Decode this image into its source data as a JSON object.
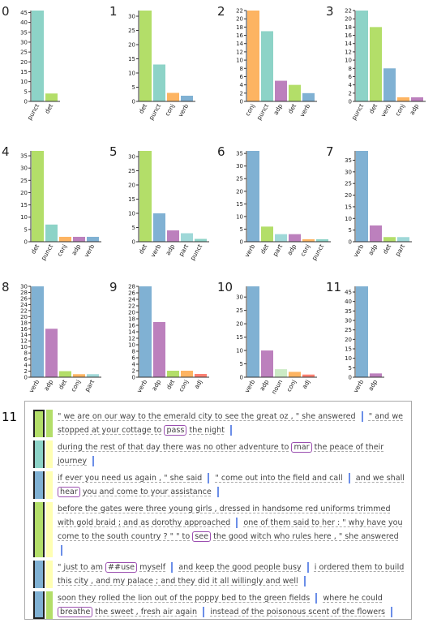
{
  "chart_data": [
    {
      "type": "bar",
      "title": "0",
      "categories": [
        "punct",
        "det"
      ],
      "values": [
        46,
        4
      ],
      "colors": [
        "#8dd3c7",
        "#b3de69"
      ],
      "ylim": [
        0,
        46
      ],
      "yticks": [
        0,
        5,
        10,
        15,
        20,
        25,
        30,
        35,
        40,
        45
      ]
    },
    {
      "type": "bar",
      "title": "1",
      "categories": [
        "det",
        "punct",
        "conj",
        "verb"
      ],
      "values": [
        32,
        13,
        3,
        2
      ],
      "colors": [
        "#b3de69",
        "#8dd3c7",
        "#fdb462",
        "#80b1d3"
      ],
      "ylim": [
        0,
        32
      ],
      "yticks": [
        0,
        5,
        10,
        15,
        20,
        25,
        30
      ]
    },
    {
      "type": "bar",
      "title": "2",
      "categories": [
        "conj",
        "punct",
        "adp",
        "det",
        "verb"
      ],
      "values": [
        22,
        17,
        5,
        4,
        2
      ],
      "colors": [
        "#fdb462",
        "#8dd3c7",
        "#bc80bd",
        "#b3de69",
        "#80b1d3"
      ],
      "ylim": [
        0,
        22
      ],
      "yticks": [
        0,
        2,
        4,
        6,
        8,
        10,
        12,
        14,
        16,
        18,
        20,
        22
      ]
    },
    {
      "type": "bar",
      "title": "3",
      "categories": [
        "punct",
        "det",
        "verb",
        "conj",
        "adp"
      ],
      "values": [
        22,
        18,
        8,
        1,
        1
      ],
      "colors": [
        "#8dd3c7",
        "#b3de69",
        "#80b1d3",
        "#fdb462",
        "#bc80bd"
      ],
      "ylim": [
        0,
        22
      ],
      "yticks": [
        0,
        2,
        4,
        6,
        8,
        10,
        12,
        14,
        16,
        18,
        20,
        22
      ]
    },
    {
      "type": "bar",
      "title": "4",
      "categories": [
        "det",
        "punct",
        "conj",
        "adp",
        "verb"
      ],
      "values": [
        37,
        7,
        2,
        2,
        2
      ],
      "colors": [
        "#b3de69",
        "#8dd3c7",
        "#fdb462",
        "#bc80bd",
        "#80b1d3"
      ],
      "ylim": [
        0,
        37
      ],
      "yticks": [
        0,
        5,
        10,
        15,
        20,
        25,
        30,
        35
      ]
    },
    {
      "type": "bar",
      "title": "5",
      "categories": [
        "det",
        "verb",
        "adp",
        "part",
        "punct"
      ],
      "values": [
        32,
        10,
        4,
        3,
        1
      ],
      "colors": [
        "#b3de69",
        "#80b1d3",
        "#bc80bd",
        "#9fd8d8",
        "#8dd3c7"
      ],
      "ylim": [
        0,
        32
      ],
      "yticks": [
        0,
        5,
        10,
        15,
        20,
        25,
        30
      ]
    },
    {
      "type": "bar",
      "title": "6",
      "categories": [
        "verb",
        "det",
        "part",
        "adp",
        "conj",
        "punct"
      ],
      "values": [
        36,
        6,
        3,
        3,
        1,
        1
      ],
      "colors": [
        "#80b1d3",
        "#b3de69",
        "#9fd8d8",
        "#bc80bd",
        "#fdb462",
        "#8dd3c7"
      ],
      "ylim": [
        0,
        36
      ],
      "yticks": [
        0,
        5,
        10,
        15,
        20,
        25,
        30,
        35
      ]
    },
    {
      "type": "bar",
      "title": "7",
      "categories": [
        "verb",
        "adp",
        "det",
        "part"
      ],
      "values": [
        39,
        7,
        2,
        2
      ],
      "colors": [
        "#80b1d3",
        "#bc80bd",
        "#b3de69",
        "#9fd8d8"
      ],
      "ylim": [
        0,
        39
      ],
      "yticks": [
        0,
        5,
        10,
        15,
        20,
        25,
        30,
        35
      ]
    },
    {
      "type": "bar",
      "title": "8",
      "categories": [
        "verb",
        "adp",
        "det",
        "conj",
        "part"
      ],
      "values": [
        30,
        16,
        2,
        1,
        1
      ],
      "colors": [
        "#80b1d3",
        "#bc80bd",
        "#b3de69",
        "#fdb462",
        "#9fd8d8"
      ],
      "ylim": [
        0,
        30
      ],
      "yticks": [
        0,
        2,
        4,
        6,
        8,
        10,
        12,
        14,
        16,
        18,
        20,
        22,
        24,
        26,
        28,
        30
      ]
    },
    {
      "type": "bar",
      "title": "9",
      "categories": [
        "verb",
        "adp",
        "det",
        "conj",
        "adj"
      ],
      "values": [
        28,
        17,
        2,
        2,
        1
      ],
      "colors": [
        "#80b1d3",
        "#bc80bd",
        "#b3de69",
        "#fdb462",
        "#fb8072"
      ],
      "ylim": [
        0,
        28
      ],
      "yticks": [
        0,
        2,
        4,
        6,
        8,
        10,
        12,
        14,
        16,
        18,
        20,
        22,
        24,
        26,
        28
      ]
    },
    {
      "type": "bar",
      "title": "10",
      "categories": [
        "verb",
        "adp",
        "noun",
        "conj",
        "adj"
      ],
      "values": [
        34,
        10,
        3,
        2,
        1
      ],
      "colors": [
        "#80b1d3",
        "#bc80bd",
        "#ccebc5",
        "#fdb462",
        "#fb8072"
      ],
      "ylim": [
        0,
        34
      ],
      "yticks": [
        0,
        5,
        10,
        15,
        20,
        25,
        30
      ]
    },
    {
      "type": "bar",
      "title": "11",
      "categories": [
        "verb",
        "adp"
      ],
      "values": [
        48,
        2
      ],
      "colors": [
        "#80b1d3",
        "#bc80bd"
      ],
      "ylim": [
        0,
        48
      ],
      "yticks": [
        0,
        5,
        10,
        15,
        20,
        25,
        30,
        35,
        40,
        45
      ]
    }
  ],
  "text_panel": {
    "label": "11",
    "rows": [
      {
        "colors": [
          "#b3de69",
          "#b3de69"
        ],
        "clauses": [
          [
            "\" we are on our way to the emerald city to see the great oz , \" she answered"
          ],
          [
            "\" and we stopped at your cottage to",
            {
              "target": "pass"
            },
            "the night"
          ]
        ]
      },
      {
        "colors": [
          "#8dd3c7",
          "#ffffb3"
        ],
        "clauses": [
          [
            "during the rest of that day there was no other adventure to",
            {
              "target": "mar"
            },
            "the peace of their journey"
          ]
        ]
      },
      {
        "colors": [
          "#80b1d3",
          "#ffffb3"
        ],
        "clauses": [
          [
            "if ever you need us again , \" she said"
          ],
          [
            "\" come out into the field and call"
          ],
          [
            "and we shall",
            {
              "target": "hear"
            },
            "you and come to your assistance"
          ]
        ]
      },
      {
        "colors": [
          "#b3de69",
          "#ffffb3"
        ],
        "clauses": [
          [
            "before the gates were three young girls , dressed in handsome red uniforms trimmed with gold braid ; and as dorothy approached"
          ],
          [
            "one of them said to her : \" why have you come to the south country ? \" \" to",
            {
              "target": "see"
            },
            "the good witch who rules here , \" she answered"
          ]
        ]
      },
      {
        "colors": [
          "#80b1d3",
          "#ffffb3"
        ],
        "clauses": [
          [
            "\" just to am",
            {
              "target": "##use"
            },
            "myself"
          ],
          [
            "and keep the good people busy"
          ],
          [
            "i ordered them to build this city , and my palace ; and they did it all willingly and well"
          ]
        ]
      },
      {
        "colors": [
          "#80b1d3",
          "#b3de69"
        ],
        "clauses": [
          [
            "soon they rolled the lion out of the poppy bed to the green fields"
          ],
          [
            "where he could",
            {
              "target": "breathe"
            },
            "the sweet , fresh air again"
          ],
          [
            "instead of the poisonous scent of the flowers"
          ]
        ]
      }
    ]
  }
}
